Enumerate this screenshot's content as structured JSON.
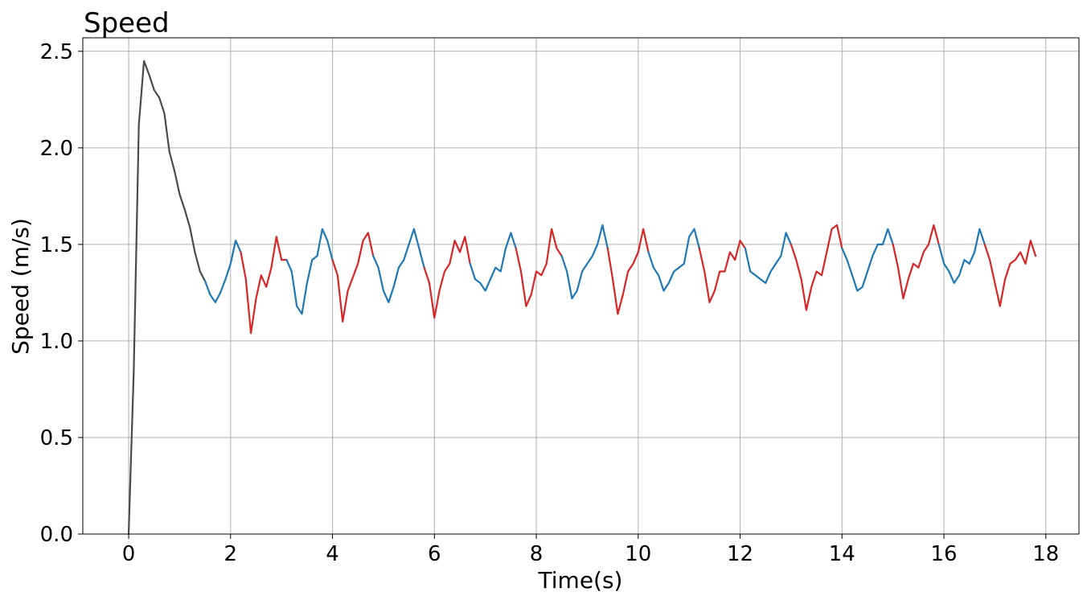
{
  "chart_data": {
    "type": "line",
    "title": "Speed",
    "xlabel": "Time(s)",
    "ylabel": "Speed (m/s)",
    "xlim": [
      -0.9,
      18.65
    ],
    "ylim": [
      0.0,
      2.57
    ],
    "xticks": [
      0,
      2,
      4,
      6,
      8,
      10,
      12,
      14,
      16,
      18
    ],
    "xtick_labels": [
      "0",
      "2",
      "4",
      "6",
      "8",
      "10",
      "12",
      "14",
      "16",
      "18"
    ],
    "yticks": [
      0.0,
      0.5,
      1.0,
      1.5,
      2.0,
      2.5
    ],
    "ytick_labels": [
      "0.0",
      "0.5",
      "1.0",
      "1.5",
      "2.0",
      "2.5"
    ],
    "grid": true,
    "colors": {
      "startup": "#4a4a4a",
      "blue": "#1f77b4",
      "red": "#d62728"
    },
    "series": [
      {
        "color": "#4a4a4a",
        "points": [
          [
            0.0,
            0.0
          ],
          [
            0.1,
            0.85
          ],
          [
            0.2,
            2.12
          ],
          [
            0.3,
            2.45
          ],
          [
            0.4,
            2.38
          ],
          [
            0.5,
            2.3
          ],
          [
            0.6,
            2.26
          ],
          [
            0.7,
            2.18
          ],
          [
            0.8,
            1.98
          ],
          [
            0.9,
            1.88
          ],
          [
            1.0,
            1.76
          ],
          [
            1.1,
            1.68
          ],
          [
            1.2,
            1.59
          ],
          [
            1.3,
            1.46
          ],
          [
            1.4,
            1.36
          ],
          [
            1.5,
            1.31
          ]
        ]
      },
      {
        "color": "#1f77b4",
        "points": [
          [
            1.5,
            1.31
          ],
          [
            1.6,
            1.24
          ],
          [
            1.7,
            1.2
          ],
          [
            1.8,
            1.25
          ],
          [
            1.9,
            1.32
          ],
          [
            2.0,
            1.4
          ],
          [
            2.1,
            1.52
          ],
          [
            2.2,
            1.46
          ]
        ]
      },
      {
        "color": "#d62728",
        "points": [
          [
            2.2,
            1.46
          ],
          [
            2.3,
            1.32
          ],
          [
            2.4,
            1.04
          ],
          [
            2.5,
            1.22
          ],
          [
            2.6,
            1.34
          ],
          [
            2.7,
            1.28
          ],
          [
            2.8,
            1.38
          ],
          [
            2.9,
            1.54
          ],
          [
            3.0,
            1.42
          ],
          [
            3.1,
            1.42
          ]
        ]
      },
      {
        "color": "#1f77b4",
        "points": [
          [
            3.1,
            1.42
          ],
          [
            3.2,
            1.36
          ],
          [
            3.3,
            1.18
          ],
          [
            3.4,
            1.14
          ],
          [
            3.5,
            1.3
          ],
          [
            3.6,
            1.42
          ],
          [
            3.7,
            1.44
          ],
          [
            3.8,
            1.58
          ],
          [
            3.9,
            1.52
          ],
          [
            4.0,
            1.42
          ]
        ]
      },
      {
        "color": "#d62728",
        "points": [
          [
            4.0,
            1.42
          ],
          [
            4.1,
            1.34
          ],
          [
            4.2,
            1.1
          ],
          [
            4.3,
            1.26
          ],
          [
            4.4,
            1.33
          ],
          [
            4.5,
            1.4
          ],
          [
            4.6,
            1.52
          ],
          [
            4.7,
            1.56
          ],
          [
            4.8,
            1.44
          ]
        ]
      },
      {
        "color": "#1f77b4",
        "points": [
          [
            4.8,
            1.44
          ],
          [
            4.9,
            1.38
          ],
          [
            5.0,
            1.26
          ],
          [
            5.1,
            1.2
          ],
          [
            5.2,
            1.28
          ],
          [
            5.3,
            1.38
          ],
          [
            5.4,
            1.42
          ],
          [
            5.5,
            1.5
          ],
          [
            5.6,
            1.58
          ],
          [
            5.7,
            1.48
          ],
          [
            5.8,
            1.38
          ]
        ]
      },
      {
        "color": "#d62728",
        "points": [
          [
            5.8,
            1.38
          ],
          [
            5.9,
            1.3
          ],
          [
            6.0,
            1.12
          ],
          [
            6.1,
            1.26
          ],
          [
            6.2,
            1.36
          ],
          [
            6.3,
            1.4
          ],
          [
            6.4,
            1.52
          ],
          [
            6.5,
            1.46
          ],
          [
            6.6,
            1.54
          ],
          [
            6.7,
            1.4
          ]
        ]
      },
      {
        "color": "#1f77b4",
        "points": [
          [
            6.7,
            1.4
          ],
          [
            6.8,
            1.32
          ],
          [
            6.9,
            1.3
          ],
          [
            7.0,
            1.26
          ],
          [
            7.1,
            1.32
          ],
          [
            7.2,
            1.38
          ],
          [
            7.3,
            1.36
          ],
          [
            7.4,
            1.48
          ],
          [
            7.5,
            1.56
          ],
          [
            7.6,
            1.48
          ]
        ]
      },
      {
        "color": "#d62728",
        "points": [
          [
            7.6,
            1.48
          ],
          [
            7.7,
            1.36
          ],
          [
            7.8,
            1.18
          ],
          [
            7.9,
            1.24
          ],
          [
            8.0,
            1.36
          ],
          [
            8.1,
            1.34
          ],
          [
            8.2,
            1.4
          ],
          [
            8.3,
            1.58
          ],
          [
            8.4,
            1.48
          ],
          [
            8.5,
            1.44
          ]
        ]
      },
      {
        "color": "#1f77b4",
        "points": [
          [
            8.5,
            1.44
          ],
          [
            8.6,
            1.36
          ],
          [
            8.7,
            1.22
          ],
          [
            8.8,
            1.26
          ],
          [
            8.9,
            1.36
          ],
          [
            9.0,
            1.4
          ],
          [
            9.1,
            1.44
          ],
          [
            9.2,
            1.5
          ],
          [
            9.3,
            1.6
          ],
          [
            9.4,
            1.48
          ]
        ]
      },
      {
        "color": "#d62728",
        "points": [
          [
            9.4,
            1.48
          ],
          [
            9.5,
            1.32
          ],
          [
            9.6,
            1.14
          ],
          [
            9.7,
            1.24
          ],
          [
            9.8,
            1.36
          ],
          [
            9.9,
            1.4
          ],
          [
            10.0,
            1.46
          ],
          [
            10.1,
            1.58
          ],
          [
            10.2,
            1.46
          ]
        ]
      },
      {
        "color": "#1f77b4",
        "points": [
          [
            10.2,
            1.46
          ],
          [
            10.3,
            1.38
          ],
          [
            10.4,
            1.34
          ],
          [
            10.5,
            1.26
          ],
          [
            10.6,
            1.3
          ],
          [
            10.7,
            1.36
          ],
          [
            10.8,
            1.38
          ],
          [
            10.9,
            1.4
          ],
          [
            11.0,
            1.54
          ],
          [
            11.1,
            1.58
          ],
          [
            11.2,
            1.48
          ]
        ]
      },
      {
        "color": "#d62728",
        "points": [
          [
            11.2,
            1.48
          ],
          [
            11.3,
            1.36
          ],
          [
            11.4,
            1.2
          ],
          [
            11.5,
            1.26
          ],
          [
            11.6,
            1.36
          ],
          [
            11.7,
            1.36
          ],
          [
            11.8,
            1.46
          ],
          [
            11.9,
            1.42
          ],
          [
            12.0,
            1.52
          ],
          [
            12.1,
            1.48
          ]
        ]
      },
      {
        "color": "#1f77b4",
        "points": [
          [
            12.1,
            1.48
          ],
          [
            12.2,
            1.36
          ],
          [
            12.3,
            1.34
          ],
          [
            12.4,
            1.32
          ],
          [
            12.5,
            1.3
          ],
          [
            12.6,
            1.36
          ],
          [
            12.7,
            1.4
          ],
          [
            12.8,
            1.44
          ],
          [
            12.9,
            1.56
          ],
          [
            13.0,
            1.5
          ]
        ]
      },
      {
        "color": "#d62728",
        "points": [
          [
            13.0,
            1.5
          ],
          [
            13.1,
            1.42
          ],
          [
            13.2,
            1.32
          ],
          [
            13.3,
            1.16
          ],
          [
            13.4,
            1.28
          ],
          [
            13.5,
            1.36
          ],
          [
            13.6,
            1.34
          ],
          [
            13.7,
            1.46
          ],
          [
            13.8,
            1.58
          ],
          [
            13.9,
            1.6
          ],
          [
            14.0,
            1.48
          ]
        ]
      },
      {
        "color": "#1f77b4",
        "points": [
          [
            14.0,
            1.48
          ],
          [
            14.1,
            1.42
          ],
          [
            14.2,
            1.34
          ],
          [
            14.3,
            1.26
          ],
          [
            14.4,
            1.28
          ],
          [
            14.5,
            1.36
          ],
          [
            14.6,
            1.44
          ],
          [
            14.7,
            1.5
          ],
          [
            14.8,
            1.5
          ],
          [
            14.9,
            1.58
          ],
          [
            15.0,
            1.5
          ]
        ]
      },
      {
        "color": "#d62728",
        "points": [
          [
            15.0,
            1.5
          ],
          [
            15.1,
            1.38
          ],
          [
            15.2,
            1.22
          ],
          [
            15.3,
            1.32
          ],
          [
            15.4,
            1.4
          ],
          [
            15.5,
            1.38
          ],
          [
            15.6,
            1.46
          ],
          [
            15.7,
            1.5
          ],
          [
            15.8,
            1.6
          ],
          [
            15.9,
            1.5
          ]
        ]
      },
      {
        "color": "#1f77b4",
        "points": [
          [
            15.9,
            1.5
          ],
          [
            16.0,
            1.4
          ],
          [
            16.1,
            1.36
          ],
          [
            16.2,
            1.3
          ],
          [
            16.3,
            1.34
          ],
          [
            16.4,
            1.42
          ],
          [
            16.5,
            1.4
          ],
          [
            16.6,
            1.46
          ],
          [
            16.7,
            1.58
          ],
          [
            16.8,
            1.5
          ]
        ]
      },
      {
        "color": "#d62728",
        "points": [
          [
            16.8,
            1.5
          ],
          [
            16.9,
            1.42
          ],
          [
            17.0,
            1.3
          ],
          [
            17.1,
            1.18
          ],
          [
            17.2,
            1.32
          ],
          [
            17.3,
            1.4
          ],
          [
            17.4,
            1.42
          ],
          [
            17.5,
            1.46
          ],
          [
            17.6,
            1.4
          ],
          [
            17.7,
            1.52
          ],
          [
            17.8,
            1.44
          ]
        ]
      }
    ]
  }
}
